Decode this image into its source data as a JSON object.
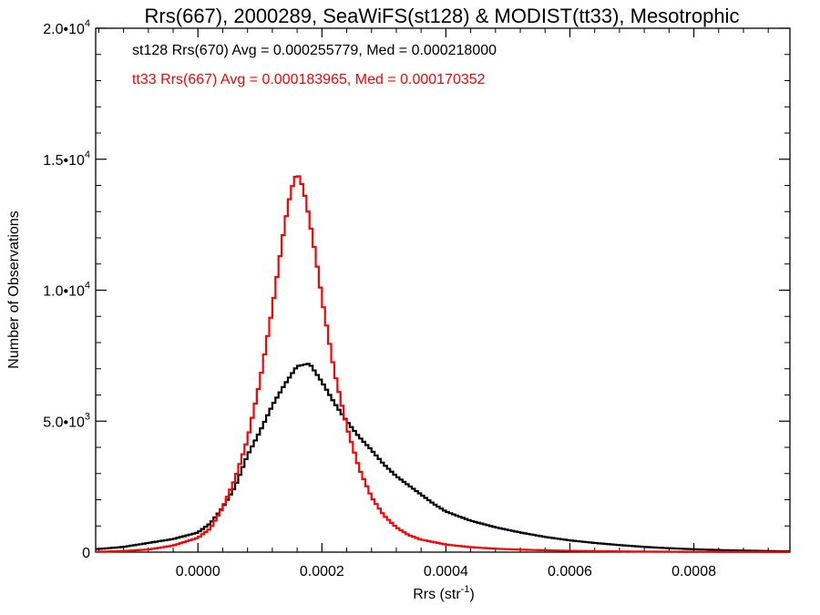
{
  "chart_data": {
    "type": "line",
    "title": "Rrs(667), 2000289, SeaWiFS(st128) & MODIST(tt33), Mesotrophic",
    "xlabel": "Rrs (str",
    "xlabel_sup": "-1",
    "xlabel_end": ")",
    "ylabel": "Number of Observations",
    "xlim": [
      -0.000165,
      0.000955
    ],
    "ylim": [
      0,
      20000
    ],
    "x_ticks": [
      {
        "value": 0.0,
        "label": "0.0000"
      },
      {
        "value": 0.0002,
        "label": "0.0002"
      },
      {
        "value": 0.0004,
        "label": "0.0004"
      },
      {
        "value": 0.0006,
        "label": "0.0006"
      },
      {
        "value": 0.0008,
        "label": "0.0008"
      }
    ],
    "y_ticks": [
      {
        "value": 0,
        "mant": "0",
        "exp": ""
      },
      {
        "value": 5000,
        "mant": "5.0•10",
        "exp": "3"
      },
      {
        "value": 10000,
        "mant": "1.0•10",
        "exp": "4"
      },
      {
        "value": 15000,
        "mant": "1.5•10",
        "exp": "4"
      },
      {
        "value": 20000,
        "mant": "2.0•10",
        "exp": "4"
      }
    ],
    "annotations": [
      {
        "text": "st128 Rrs(670) Avg = 0.000255779, Med = 0.000218000",
        "color": "#000000"
      },
      {
        "text": "tt33 Rrs(667) Avg = 0.000183965, Med = 0.000170352",
        "color": "#ff0000"
      }
    ],
    "series": [
      {
        "color": "#000000",
        "style": "histogram",
        "points": [
          [
            -0.00016,
            120
          ],
          [
            -0.00012,
            200
          ],
          [
            -8e-05,
            350
          ],
          [
            -4e-05,
            500
          ],
          [
            0.0,
            750
          ],
          [
            2e-05,
            1100
          ],
          [
            4e-05,
            1700
          ],
          [
            6e-05,
            2500
          ],
          [
            8e-05,
            3700
          ],
          [
            0.0001,
            4600
          ],
          [
            0.00012,
            5600
          ],
          [
            0.00014,
            6400
          ],
          [
            0.00016,
            7100
          ],
          [
            0.00018,
            7200
          ],
          [
            0.0002,
            6500
          ],
          [
            0.00022,
            5700
          ],
          [
            0.00024,
            5000
          ],
          [
            0.00026,
            4400
          ],
          [
            0.00028,
            3900
          ],
          [
            0.0003,
            3350
          ],
          [
            0.00032,
            2900
          ],
          [
            0.00034,
            2550
          ],
          [
            0.00036,
            2200
          ],
          [
            0.00038,
            1850
          ],
          [
            0.0004,
            1550
          ],
          [
            0.00044,
            1200
          ],
          [
            0.00048,
            950
          ],
          [
            0.00052,
            750
          ],
          [
            0.00056,
            580
          ],
          [
            0.0006,
            450
          ],
          [
            0.00064,
            350
          ],
          [
            0.00068,
            270
          ],
          [
            0.00072,
            200
          ],
          [
            0.00076,
            150
          ],
          [
            0.0008,
            110
          ],
          [
            0.00085,
            75
          ],
          [
            0.0009,
            50
          ],
          [
            0.00095,
            30
          ]
        ]
      },
      {
        "color": "#ff0000",
        "style": "histogram",
        "points": [
          [
            -0.00016,
            15
          ],
          [
            -0.00012,
            40
          ],
          [
            -8e-05,
            100
          ],
          [
            -4e-05,
            250
          ],
          [
            0.0,
            550
          ],
          [
            2e-05,
            900
          ],
          [
            4e-05,
            1700
          ],
          [
            6e-05,
            2800
          ],
          [
            8e-05,
            4300
          ],
          [
            0.0001,
            6500
          ],
          [
            0.00012,
            9300
          ],
          [
            0.00014,
            12500
          ],
          [
            0.00015,
            13800
          ],
          [
            0.00016,
            14500
          ],
          [
            0.00017,
            13900
          ],
          [
            0.00018,
            12700
          ],
          [
            0.00019,
            11300
          ],
          [
            0.0002,
            9700
          ],
          [
            0.00022,
            6900
          ],
          [
            0.00024,
            4800
          ],
          [
            0.00026,
            3200
          ],
          [
            0.00028,
            2100
          ],
          [
            0.0003,
            1400
          ],
          [
            0.00032,
            950
          ],
          [
            0.00034,
            650
          ],
          [
            0.00036,
            480
          ],
          [
            0.0004,
            290
          ],
          [
            0.00044,
            190
          ],
          [
            0.00048,
            130
          ],
          [
            0.00052,
            95
          ],
          [
            0.00056,
            70
          ],
          [
            0.0006,
            50
          ],
          [
            0.00064,
            38
          ],
          [
            0.00068,
            28
          ],
          [
            0.00072,
            20
          ],
          [
            0.0008,
            12
          ],
          [
            0.00088,
            7
          ],
          [
            0.00095,
            4
          ]
        ]
      }
    ]
  }
}
